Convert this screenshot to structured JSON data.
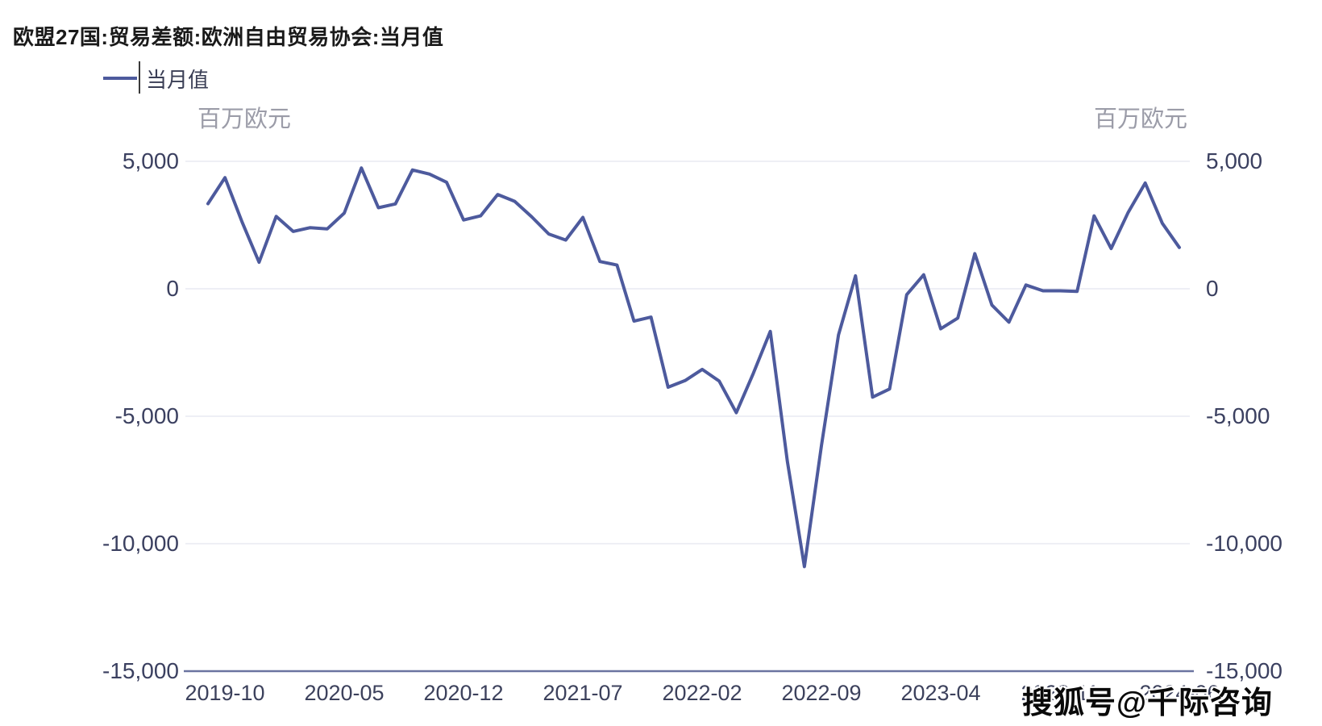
{
  "page": {
    "title": "欧盟27国:贸易差额:欧洲自由贸易协会:当月值"
  },
  "legend": {
    "label": "当月值"
  },
  "watermark": "搜狐号@千际咨询",
  "chart_data": {
    "type": "line",
    "title": "欧盟27国:贸易差额:欧洲自由贸易协会:当月值",
    "unit_left": "百万欧元",
    "unit_right": "百万欧元",
    "xlabel": "",
    "ylabel": "百万欧元",
    "ylim": [
      -15000,
      5000
    ],
    "grid": "horizontal-only",
    "legend_position": "top-left",
    "line_color": "#4d5a9d",
    "x": [
      "2019-09",
      "2019-10",
      "2019-11",
      "2019-12",
      "2020-01",
      "2020-02",
      "2020-03",
      "2020-04",
      "2020-05",
      "2020-06",
      "2020-07",
      "2020-08",
      "2020-09",
      "2020-10",
      "2020-11",
      "2020-12",
      "2021-01",
      "2021-02",
      "2021-03",
      "2021-04",
      "2021-05",
      "2021-06",
      "2021-07",
      "2021-08",
      "2021-09",
      "2021-10",
      "2021-11",
      "2021-12",
      "2022-01",
      "2022-02",
      "2022-03",
      "2022-04",
      "2022-05",
      "2022-06",
      "2022-07",
      "2022-08",
      "2022-09",
      "2022-10",
      "2022-11",
      "2022-12",
      "2023-01",
      "2023-02",
      "2023-03",
      "2023-04",
      "2023-05",
      "2023-06",
      "2023-07",
      "2023-08",
      "2023-09",
      "2023-10",
      "2023-11",
      "2023-12",
      "2024-01",
      "2024-02",
      "2024-03",
      "2024-04",
      "2024-05",
      "2024-06"
    ],
    "series": [
      {
        "name": "当月值",
        "values": [
          3340,
          4360,
          2620,
          1040,
          2840,
          2250,
          2400,
          2350,
          2970,
          4740,
          3180,
          3330,
          4660,
          4500,
          4180,
          2700,
          2860,
          3700,
          3430,
          2820,
          2150,
          1910,
          2800,
          1070,
          930,
          -1270,
          -1110,
          -3860,
          -3600,
          -3160,
          -3620,
          -4860,
          -3320,
          -1670,
          -6780,
          -10900,
          -6140,
          -1810,
          510,
          -4250,
          -3930,
          -230,
          550,
          -1570,
          -1150,
          1380,
          -640,
          -1310,
          150,
          -80,
          -80,
          -100,
          2860,
          1580,
          3000,
          4150,
          2570,
          1620
        ]
      }
    ],
    "y_ticks": [
      {
        "value": 5000,
        "label": "5,000"
      },
      {
        "value": 0,
        "label": "0"
      },
      {
        "value": -5000,
        "label": "-5,000"
      },
      {
        "value": -10000,
        "label": "-10,000"
      },
      {
        "value": -15000,
        "label": "-15,000"
      }
    ],
    "x_ticks": [
      {
        "index": 1,
        "label": "2019-10"
      },
      {
        "index": 8,
        "label": "2020-05"
      },
      {
        "index": 15,
        "label": "2020-12"
      },
      {
        "index": 22,
        "label": "2021-07"
      },
      {
        "index": 29,
        "label": "2022-02"
      },
      {
        "index": 36,
        "label": "2022-09"
      },
      {
        "index": 43,
        "label": "2023-04"
      },
      {
        "index": 50,
        "label": "2023-11"
      },
      {
        "index": 57,
        "label": "2024-06"
      }
    ]
  }
}
